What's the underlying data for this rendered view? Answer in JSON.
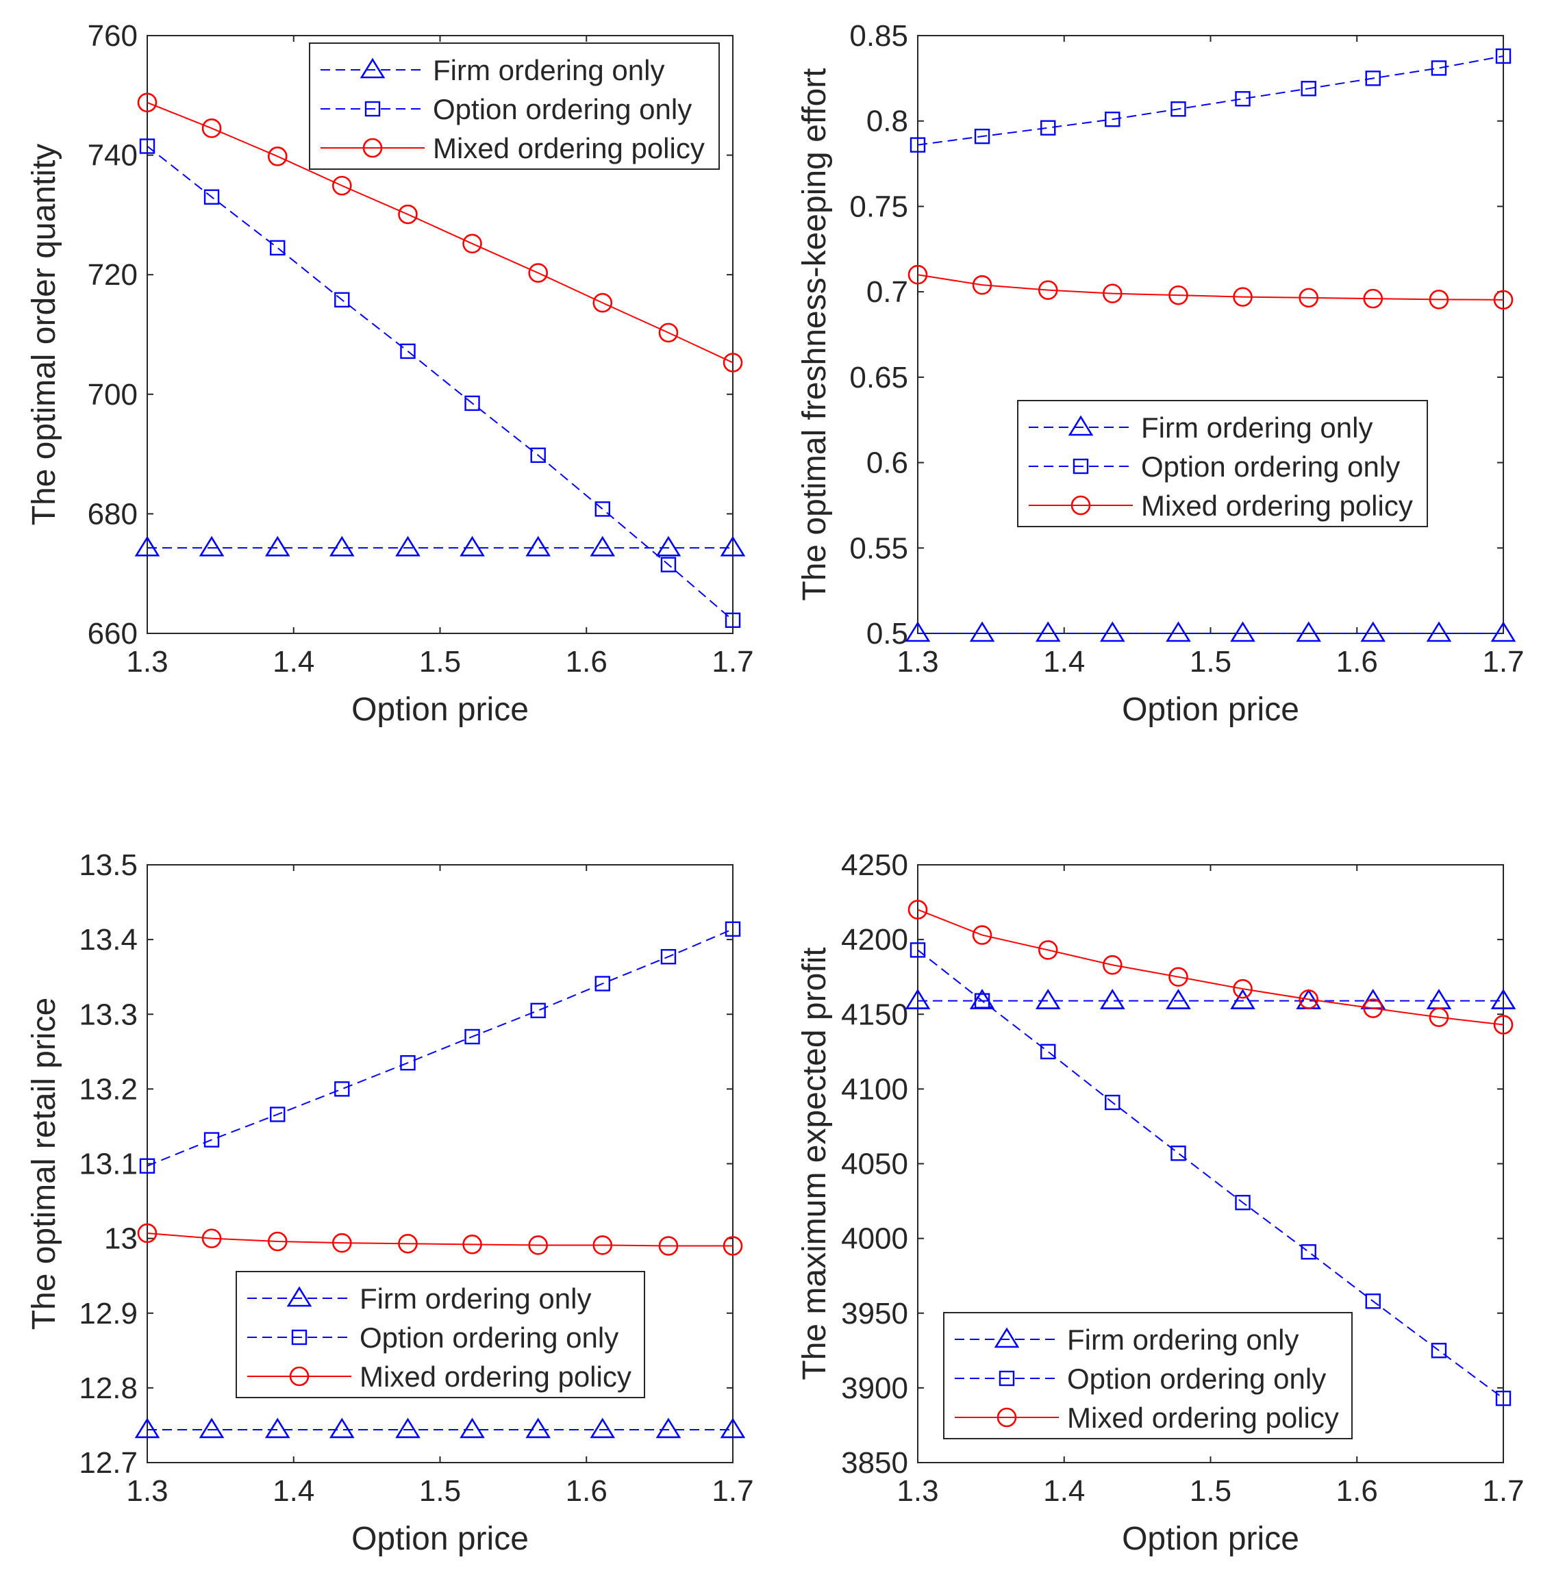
{
  "chart_data": [
    {
      "type": "line",
      "xlabel": "Option price",
      "ylabel": "The optimal order quantity",
      "xlim": [
        1.3,
        1.7
      ],
      "ylim": [
        660,
        760
      ],
      "xticks": [
        1.3,
        1.4,
        1.5,
        1.6,
        1.7
      ],
      "xtick_labels": [
        "1.3",
        "1.4",
        "1.5",
        "1.6",
        "1.7"
      ],
      "yticks": [
        660,
        680,
        700,
        720,
        740,
        760
      ],
      "ytick_labels": [
        "660",
        "680",
        "700",
        "720",
        "740",
        "760"
      ],
      "legend_position": "top-right",
      "x": [
        1.3,
        1.344,
        1.389,
        1.433,
        1.478,
        1.522,
        1.567,
        1.611,
        1.656,
        1.7
      ],
      "series": [
        {
          "name": "Firm ordering only",
          "marker": "triangle",
          "style": "dashed",
          "color": "#0000ff",
          "values": [
            674.3,
            674.3,
            674.3,
            674.3,
            674.3,
            674.3,
            674.3,
            674.3,
            674.3,
            674.3
          ]
        },
        {
          "name": "Option ordering only",
          "marker": "square",
          "style": "dashed",
          "color": "#0000ff",
          "values": [
            741.5,
            733.0,
            724.5,
            715.8,
            707.2,
            698.5,
            689.8,
            680.8,
            671.5,
            662.2
          ]
        },
        {
          "name": "Mixed ordering policy",
          "marker": "circle",
          "style": "solid",
          "color": "#ff0000",
          "values": [
            748.8,
            744.5,
            739.8,
            734.9,
            730.1,
            725.2,
            720.3,
            715.3,
            710.3,
            705.3
          ]
        }
      ]
    },
    {
      "type": "line",
      "xlabel": "Option price",
      "ylabel": "The optimal freshness-keeping effort",
      "xlim": [
        1.3,
        1.7
      ],
      "ylim": [
        0.5,
        0.85
      ],
      "xticks": [
        1.3,
        1.4,
        1.5,
        1.6,
        1.7
      ],
      "xtick_labels": [
        "1.3",
        "1.4",
        "1.5",
        "1.6",
        "1.7"
      ],
      "yticks": [
        0.5,
        0.55,
        0.6,
        0.65,
        0.7,
        0.75,
        0.8,
        0.85
      ],
      "ytick_labels": [
        "0.5",
        "0.55",
        "0.6",
        "0.65",
        "0.7",
        "0.75",
        "0.8",
        "0.85"
      ],
      "legend_position": "center-right",
      "x": [
        1.3,
        1.344,
        1.389,
        1.433,
        1.478,
        1.522,
        1.567,
        1.611,
        1.656,
        1.7
      ],
      "series": [
        {
          "name": "Firm ordering only",
          "marker": "triangle",
          "style": "dashed",
          "color": "#0000ff",
          "values": [
            0.5,
            0.5,
            0.5,
            0.5,
            0.5,
            0.5,
            0.5,
            0.5,
            0.5,
            0.5
          ]
        },
        {
          "name": "Option ordering only",
          "marker": "square",
          "style": "dashed",
          "color": "#0000ff",
          "values": [
            0.786,
            0.791,
            0.796,
            0.801,
            0.807,
            0.813,
            0.819,
            0.825,
            0.831,
            0.838
          ]
        },
        {
          "name": "Mixed ordering policy",
          "marker": "circle",
          "style": "solid",
          "color": "#ff0000",
          "values": [
            0.71,
            0.704,
            0.701,
            0.699,
            0.698,
            0.697,
            0.6965,
            0.696,
            0.6955,
            0.6953
          ]
        }
      ]
    },
    {
      "type": "line",
      "xlabel": "Option price",
      "ylabel": "The optimal retail price",
      "xlim": [
        1.3,
        1.7
      ],
      "ylim": [
        12.7,
        13.5
      ],
      "xticks": [
        1.3,
        1.4,
        1.5,
        1.6,
        1.7
      ],
      "xtick_labels": [
        "1.3",
        "1.4",
        "1.5",
        "1.6",
        "1.7"
      ],
      "yticks": [
        12.7,
        12.8,
        12.9,
        13.0,
        13.1,
        13.2,
        13.3,
        13.4,
        13.5
      ],
      "ytick_labels": [
        "12.7",
        "12.8",
        "12.9",
        "13",
        "13.1",
        "13.2",
        "13.3",
        "13.4",
        "13.5"
      ],
      "legend_position": "bottom-center",
      "x": [
        1.3,
        1.344,
        1.389,
        1.433,
        1.478,
        1.522,
        1.567,
        1.611,
        1.656,
        1.7
      ],
      "series": [
        {
          "name": "Firm ordering only",
          "marker": "triangle",
          "style": "dashed",
          "color": "#0000ff",
          "values": [
            12.744,
            12.744,
            12.744,
            12.744,
            12.744,
            12.744,
            12.744,
            12.744,
            12.744,
            12.744
          ]
        },
        {
          "name": "Option ordering only",
          "marker": "square",
          "style": "dashed",
          "color": "#0000ff",
          "values": [
            13.097,
            13.132,
            13.166,
            13.2,
            13.235,
            13.27,
            13.305,
            13.341,
            13.377,
            13.414
          ]
        },
        {
          "name": "Mixed ordering policy",
          "marker": "circle",
          "style": "solid",
          "color": "#ff0000",
          "values": [
            13.007,
            13.0,
            12.996,
            12.994,
            12.993,
            12.992,
            12.991,
            12.991,
            12.99,
            12.99
          ]
        }
      ]
    },
    {
      "type": "line",
      "xlabel": "Option price",
      "ylabel": "The maximum expected profit",
      "xlim": [
        1.3,
        1.7
      ],
      "ylim": [
        3850,
        4250
      ],
      "xticks": [
        1.3,
        1.4,
        1.5,
        1.6,
        1.7
      ],
      "xtick_labels": [
        "1.3",
        "1.4",
        "1.5",
        "1.6",
        "1.7"
      ],
      "yticks": [
        3850,
        3900,
        3950,
        4000,
        4050,
        4100,
        4150,
        4200,
        4250
      ],
      "ytick_labels": [
        "3850",
        "3900",
        "3950",
        "4000",
        "4050",
        "4100",
        "4150",
        "4200",
        "4250"
      ],
      "legend_position": "bottom-left",
      "x": [
        1.3,
        1.344,
        1.389,
        1.433,
        1.478,
        1.522,
        1.567,
        1.611,
        1.656,
        1.7
      ],
      "series": [
        {
          "name": "Firm ordering only",
          "marker": "triangle",
          "style": "dashed",
          "color": "#0000ff",
          "values": [
            4159,
            4159,
            4159,
            4159,
            4159,
            4159,
            4159,
            4159,
            4159,
            4159
          ]
        },
        {
          "name": "Option ordering only",
          "marker": "square",
          "style": "dashed",
          "color": "#0000ff",
          "values": [
            4193,
            4159,
            4125,
            4091,
            4057,
            4024,
            3991,
            3958,
            3925,
            3893
          ]
        },
        {
          "name": "Mixed ordering policy",
          "marker": "circle",
          "style": "solid",
          "color": "#ff0000",
          "values": [
            4220,
            4203,
            4193,
            4183,
            4175,
            4167,
            4160,
            4154,
            4148,
            4143
          ]
        }
      ]
    }
  ]
}
